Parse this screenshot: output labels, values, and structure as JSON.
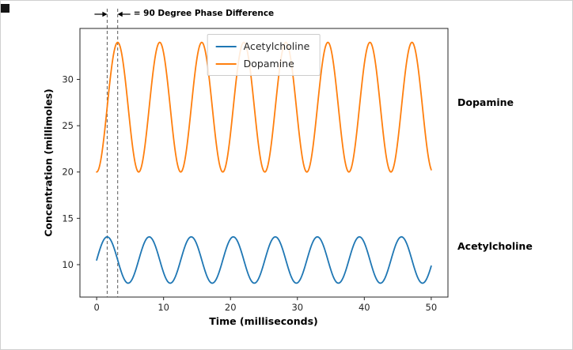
{
  "figure": {
    "background": "#ffffff",
    "frame_color": "#262626"
  },
  "chart_data": {
    "type": "line",
    "title": "",
    "xlabel": "Time (milliseconds)",
    "ylabel": "Concentration (millimoles)",
    "xlim": [
      -2.5,
      52.5
    ],
    "ylim": [
      6.5,
      35.5
    ],
    "x_ticks": [
      0,
      10,
      20,
      30,
      40,
      50
    ],
    "y_ticks": [
      10,
      15,
      20,
      25,
      30
    ],
    "grid": false,
    "legend": {
      "position": "upper center",
      "entries": [
        "Acetylcholine",
        "Dopamine"
      ]
    },
    "series": [
      {
        "name": "Acetylcholine",
        "color": "#1f77b4",
        "midline": 10.5,
        "amplitude": 2.5,
        "period_ms": 6.2832,
        "phase_deg": 0,
        "x_start": 0,
        "x_end": 50,
        "min_value": 8,
        "max_value": 13
      },
      {
        "name": "Dopamine",
        "color": "#ff7f0e",
        "midline": 27.0,
        "amplitude": 7.0,
        "period_ms": 6.2832,
        "phase_deg": -90,
        "x_start": 0,
        "x_end": 50,
        "min_value": 20,
        "max_value": 34
      }
    ],
    "annotation": {
      "text": "= 90 Degree Phase Difference",
      "dashed_lines_x_ms": [
        1.5708,
        3.1416
      ],
      "phase_difference_deg": 90
    },
    "right_labels": [
      {
        "text": "Dopamine",
        "at_value": 27
      },
      {
        "text": "Acetylcholine",
        "at_value": 10.5
      }
    ]
  }
}
